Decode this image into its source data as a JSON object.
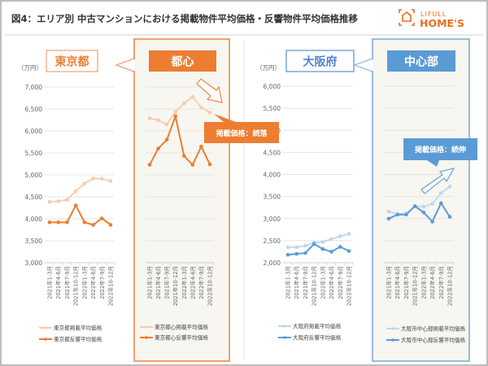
{
  "title": "図4：エリア別 中古マンションにおける掲載物件平均価格・反響物件平均価格推移",
  "logo": {
    "line1": "LIFULL",
    "line2": "HOME'S",
    "color": "#ed6d1f"
  },
  "unit_label": "（万円）",
  "callouts": {
    "tokyo_center": "掲載価格：続落",
    "osaka_center": "掲載価格：続伸"
  },
  "colors": {
    "orange": "#ed7d31",
    "orange_light": "#f8cbad",
    "blue": "#5b9bd5",
    "blue_light": "#bdd7ee",
    "panel_bg": "#f7f6f0"
  },
  "chart_data": [
    {
      "type": "line",
      "title": "東京都",
      "ylim": [
        3000,
        7000
      ],
      "yticks": [
        "3,000",
        "3,500",
        "4,000",
        "4,500",
        "5,000",
        "5,500",
        "6,000",
        "6,500",
        "7,000"
      ],
      "categories": [
        "2021年1-3月",
        "2021年4-6月",
        "2021年7-9月",
        "2021年10-12月",
        "2022年1-3月",
        "2022年4-6月",
        "2022年7-9月",
        "2022年10-12月"
      ],
      "grid": true,
      "legend": "bottom",
      "series": [
        {
          "name": "東京都掲載平均価格",
          "values": [
            4385,
            4400,
            4430,
            4630,
            4800,
            4920,
            4910,
            4860
          ]
        },
        {
          "name": "東京都反響平均価格",
          "values": [
            3920,
            3920,
            3920,
            4305,
            3920,
            3862,
            4009,
            3862
          ]
        }
      ]
    },
    {
      "type": "line",
      "title": "都心",
      "ylim": [
        3000,
        7000
      ],
      "categories": [
        "2021年1-3月",
        "2021年4-6月",
        "2021年7-9月",
        "2021年10-12月",
        "2022年1-3月",
        "2022年4-6月",
        "2022年7-9月",
        "2022年10-12月"
      ],
      "grid": true,
      "legend": "bottom",
      "series": [
        {
          "name": "東京都心掲載平均価格",
          "values": [
            6290,
            6245,
            6150,
            6440,
            6630,
            6775,
            6535,
            6420
          ]
        },
        {
          "name": "東京都心反響平均価格",
          "values": [
            5230,
            5600,
            5800,
            6335,
            5430,
            5230,
            5645,
            5240
          ]
        }
      ]
    },
    {
      "type": "line",
      "title": "大阪府",
      "ylim": [
        2000,
        6000
      ],
      "yticks": [
        "2,000",
        "2,500",
        "3,000",
        "3,500",
        "4,000",
        "4,500",
        "5,000",
        "5,500",
        "6,000"
      ],
      "categories": [
        "2021年1-3月",
        "2021年4-6月",
        "2021年7-9月",
        "2021年10-12月",
        "2022年1-3月",
        "2022年4-6月",
        "2022年7-9月",
        "2022年10-12月"
      ],
      "grid": true,
      "legend": "bottom",
      "series": [
        {
          "name": "大阪府掲載平均価格",
          "values": [
            2350,
            2350,
            2385,
            2455,
            2470,
            2535,
            2600,
            2655
          ]
        },
        {
          "name": "大阪府反響平均価格",
          "values": [
            2180,
            2200,
            2220,
            2425,
            2310,
            2250,
            2360,
            2265
          ]
        }
      ]
    },
    {
      "type": "line",
      "title": "中心部",
      "ylim": [
        2000,
        6000
      ],
      "categories": [
        "2021年1-3月",
        "2021年4-6月",
        "2021年7-9月",
        "2021年10-12月",
        "2022年1-3月",
        "2022年4-6月",
        "2022年7-9月",
        "2022年10-12月"
      ],
      "grid": true,
      "legend": "bottom",
      "series": [
        {
          "name": "大阪市中心部掲載平均価格",
          "values": [
            3160,
            3105,
            3120,
            3285,
            3270,
            3335,
            3575,
            3725
          ]
        },
        {
          "name": "大阪市中心部反響平均価格",
          "values": [
            3000,
            3090,
            3090,
            3280,
            3140,
            2930,
            3350,
            3040
          ]
        }
      ]
    }
  ]
}
